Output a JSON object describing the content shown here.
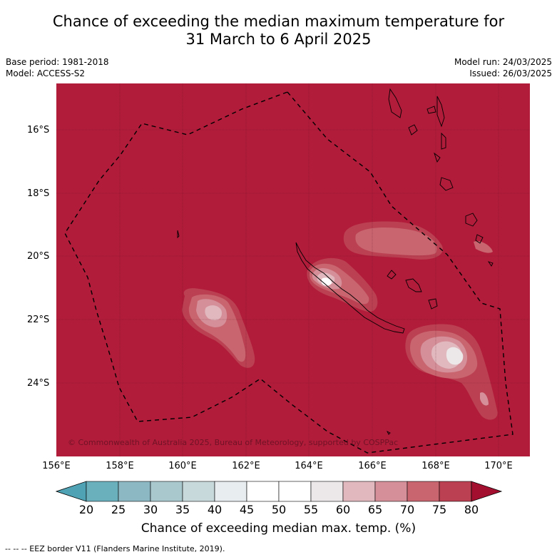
{
  "header": {
    "title_line1": "Chance of exceeding the median maximum temperature for",
    "title_line2": "31 March to 6 April 2025",
    "base_period": "Base period: 1981-2018",
    "model": "Model: ACCESS-S2",
    "model_run": "Model run: 24/03/2025",
    "issued": "Issued: 26/03/2025"
  },
  "map": {
    "background_color": "#b11c3a",
    "lat_labels": [
      "16°S",
      "18°S",
      "20°S",
      "22°S",
      "24°S"
    ],
    "lon_labels": [
      "156°E",
      "158°E",
      "160°E",
      "162°E",
      "164°E",
      "166°E",
      "168°E",
      "170°E"
    ],
    "copyright": "© Commonwealth of Australia 2025, Bureau of Meteorology, supported by COSPPac"
  },
  "colorbar": {
    "ticks": [
      "20",
      "25",
      "30",
      "35",
      "40",
      "45",
      "50",
      "55",
      "60",
      "65",
      "70",
      "75",
      "80"
    ],
    "colors": [
      "#6aafbc",
      "#8cb8c3",
      "#a9c8cd",
      "#c8d9dc",
      "#e8eef0",
      "#ffffff",
      "#ffffff",
      "#ece8e9",
      "#e0b8be",
      "#d58f99",
      "#c8656f",
      "#bb4152"
    ],
    "under_color": "#4fa2b4",
    "over_color": "#a3102f",
    "label": "Chance of exceeding median max. temp. (%)"
  },
  "footer": {
    "eez_note": "--  --  -- EEZ border V11 (Flanders Marine Institute, 2019)."
  }
}
